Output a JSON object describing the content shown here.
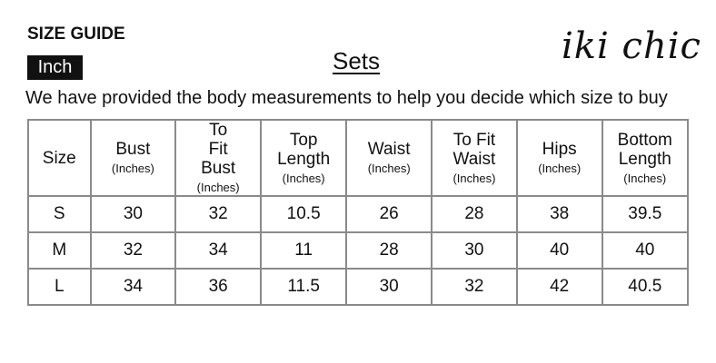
{
  "header": {
    "title": "SIZE GUIDE",
    "unit_badge": "Inch",
    "category": "Sets",
    "brand_logo": "iki chic"
  },
  "intro": "We have provided the body measurements to help you decide which size to buy",
  "table": {
    "columns": [
      {
        "label": "Size",
        "unit": ""
      },
      {
        "label": "Bust",
        "unit": "(Inches)"
      },
      {
        "label": "To Fit Bust",
        "unit": "(Inches)"
      },
      {
        "label": "Top Length",
        "unit": "(Inches)"
      },
      {
        "label": "Waist",
        "unit": "(Inches)"
      },
      {
        "label": "To Fit Waist",
        "unit": "(Inches)"
      },
      {
        "label": "Hips",
        "unit": "(Inches)"
      },
      {
        "label": "Bottom Length",
        "unit": "(Inches)"
      }
    ],
    "rows": [
      [
        "S",
        "30",
        "32",
        "10.5",
        "26",
        "28",
        "38",
        "39.5"
      ],
      [
        "M",
        "32",
        "34",
        "11",
        "28",
        "30",
        "40",
        "40"
      ],
      [
        "L",
        "34",
        "36",
        "11.5",
        "30",
        "32",
        "42",
        "40.5"
      ]
    ]
  }
}
